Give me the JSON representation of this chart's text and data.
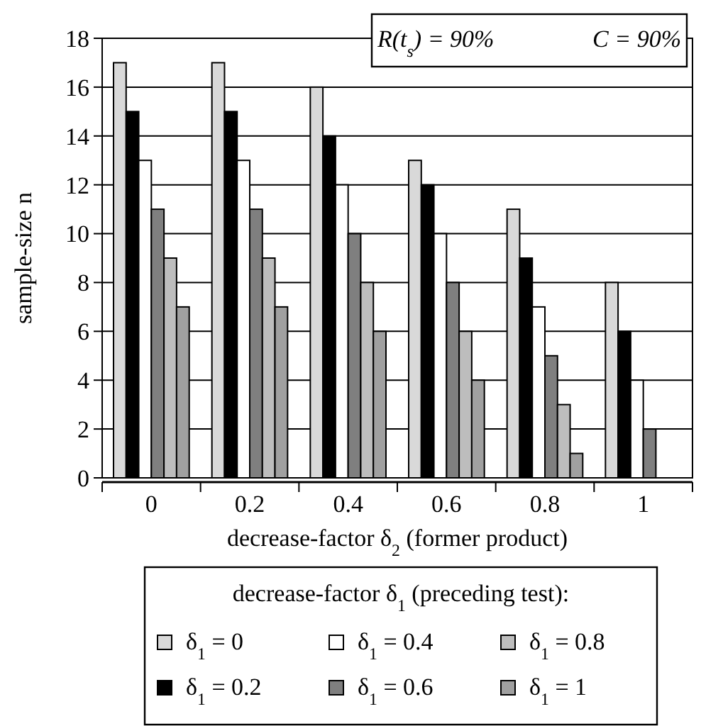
{
  "chart_data": {
    "type": "bar",
    "xlabel": "decrease-factor δ$_{2}$ (former product)",
    "ylabel": "sample-size n",
    "legend_title": "decrease-factor δ$_{1}$ (preceding test):",
    "categories": [
      "0",
      "0.2",
      "0.4",
      "0.6",
      "0.8",
      "1"
    ],
    "series": [
      {
        "name": "δ$_{1}$ = 0",
        "color": "#d9d9d9",
        "values": [
          17,
          17,
          16,
          13,
          11,
          8
        ]
      },
      {
        "name": "δ$_{1}$ = 0.2",
        "color": "#000000",
        "values": [
          15,
          15,
          14,
          12,
          9,
          6
        ]
      },
      {
        "name": "δ$_{1}$ = 0.4",
        "color": "#ffffff",
        "values": [
          13,
          13,
          12,
          10,
          7,
          4
        ]
      },
      {
        "name": "δ$_{1}$ = 0.6",
        "color": "#7f7f7f",
        "values": [
          11,
          11,
          10,
          8,
          5,
          2
        ]
      },
      {
        "name": "δ$_{1}$ = 0.8",
        "color": "#bdbdbd",
        "values": [
          9,
          9,
          8,
          6,
          3,
          0
        ]
      },
      {
        "name": "δ$_{1}$ = 1",
        "color": "#a0a0a0",
        "values": [
          7,
          7,
          6,
          4,
          1,
          0
        ]
      }
    ],
    "ylim": [
      0,
      18
    ],
    "yticks": [
      0,
      2,
      4,
      6,
      8,
      10,
      12,
      14,
      16,
      18
    ],
    "grid": "y",
    "legend": "bottom",
    "annotations": [
      "R(t$_{s}$) = 90%",
      "C = 90%"
    ]
  }
}
